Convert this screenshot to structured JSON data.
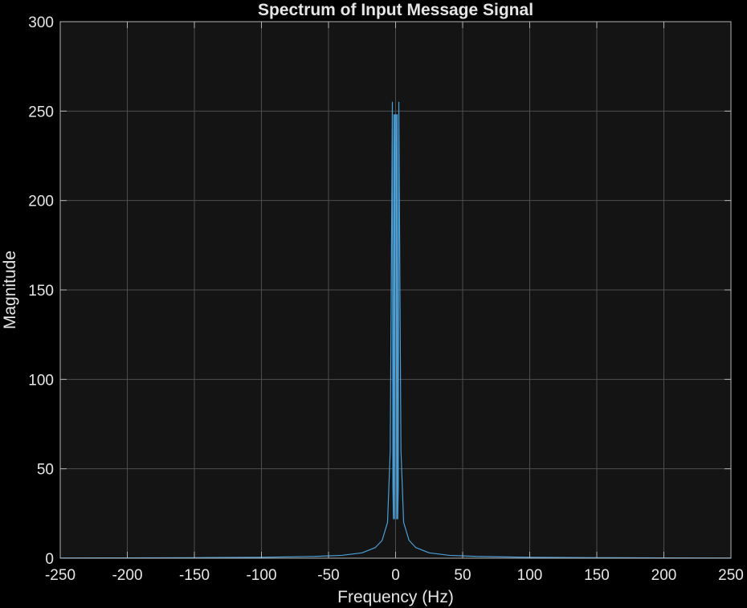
{
  "chart_data": {
    "type": "line",
    "title": "Spectrum of Input Message Signal",
    "xlabel": "Frequency (Hz)",
    "ylabel": "Magnitude",
    "xlim": [
      -250,
      250
    ],
    "ylim": [
      0,
      300
    ],
    "x_ticks": [
      "-250",
      "-200",
      "-150",
      "-100",
      "-50",
      "0",
      "50",
      "100",
      "150",
      "200",
      "250"
    ],
    "y_ticks": [
      "0",
      "50",
      "100",
      "150",
      "200",
      "250",
      "300"
    ],
    "grid": true,
    "series": [
      {
        "color": "#4a9fd8",
        "x": [
          -250,
          -200,
          -150,
          -100,
          -60,
          -40,
          -25,
          -15,
          -10,
          -6,
          -4,
          -3,
          -2.4,
          -2,
          -1.6,
          -1.2,
          -0.8,
          -0.4,
          0,
          0.4,
          0.8,
          1.2,
          1.6,
          2,
          2.4,
          3,
          4,
          6,
          10,
          15,
          25,
          40,
          60,
          100,
          150,
          200,
          250
        ],
        "values": [
          0.1,
          0.2,
          0.3,
          0.5,
          1,
          1.6,
          3,
          6,
          10,
          20,
          60,
          180,
          255,
          40,
          22,
          248,
          22,
          248,
          248,
          248,
          22,
          248,
          22,
          40,
          255,
          180,
          60,
          20,
          10,
          6,
          3,
          1.6,
          1,
          0.5,
          0.3,
          0.2,
          0.1
        ]
      }
    ]
  },
  "colors": {
    "background": "#000000",
    "axes_background": "#141414",
    "grid": "#4d4d4d",
    "axis_line": "#b3b3b3",
    "text": "#e6e6e6"
  }
}
